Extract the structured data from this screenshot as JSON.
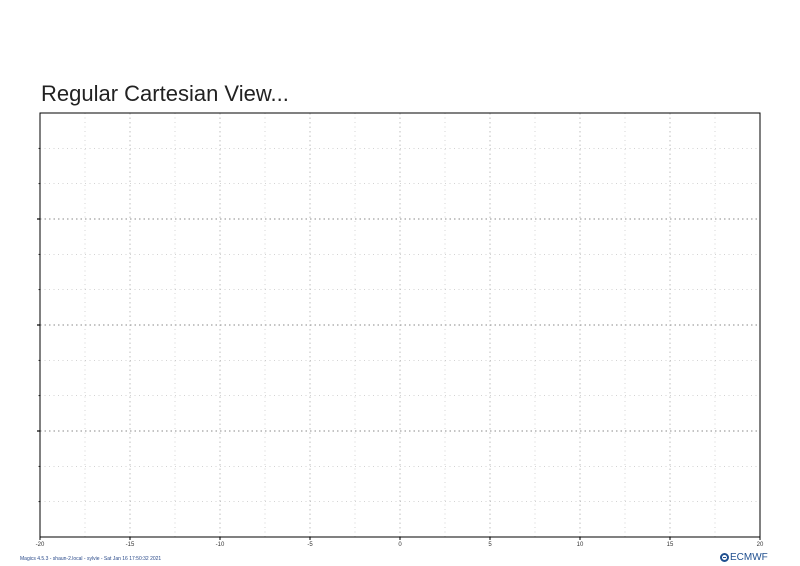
{
  "chart_data": {
    "type": "scatter",
    "title": "Regular Cartesian View...",
    "xlim": [
      -20,
      20
    ],
    "x_major_ticks": [
      -20,
      -15,
      -10,
      -5,
      0,
      5,
      10,
      15,
      20
    ],
    "x_tick_labels": [
      "-20",
      "-15",
      "-10",
      "-5",
      "0",
      "5",
      "10",
      "15",
      "20"
    ],
    "y_major_tick_count": 4,
    "grid": true,
    "series": []
  },
  "footer": {
    "info": "Magics 4.5.3 - shaun-2.local - sylvie - Sat Jan 16 17:50:32 2021",
    "logo_text": "ECMWF"
  },
  "colors": {
    "grid": "#b9b9b9",
    "frame": "#000000",
    "logo": "#1f4f8f"
  }
}
